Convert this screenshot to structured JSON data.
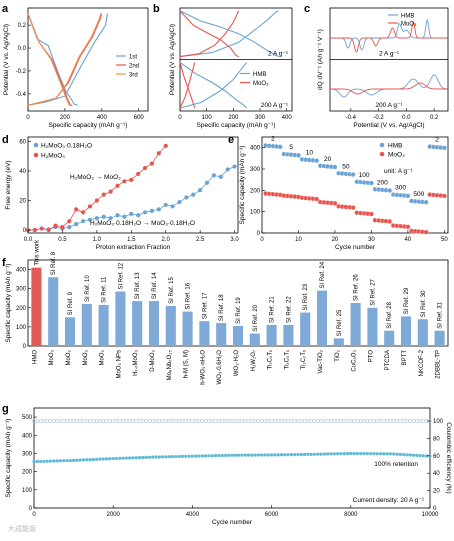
{
  "colors": {
    "blue": "#6aa3d6",
    "red": "#e8554e",
    "orange": "#f0904a",
    "cyan": "#5fb8d4",
    "gray": "#888888",
    "bar": "#7fa9d6",
    "barRed": "#e25a55",
    "green": "#8fb0d0"
  },
  "watermark": "大成能源",
  "chart_data": [
    {
      "id": "a",
      "type": "line",
      "panel_label": "a",
      "xlabel": "Specific capacity (mAh g⁻¹)",
      "ylabel": "Potential (V vs. Ag/AgCl)",
      "xlim": [
        0,
        650
      ],
      "ylim": [
        -0.55,
        0.35
      ],
      "xticks": [
        0,
        200,
        400,
        600
      ],
      "yticks": [
        -0.4,
        -0.2,
        0.0,
        0.2
      ],
      "series": [
        {
          "name": "1st",
          "color": "#6aa3d6",
          "x": [
            0,
            50,
            110,
            160,
            205,
            240,
            250,
            270
          ],
          "y": [
            0.3,
            0.08,
            0.02,
            -0.2,
            -0.38,
            -0.46,
            -0.49,
            -0.5
          ]
        },
        {
          "name": "1st-charge",
          "color": "#6aa3d6",
          "x": [
            0,
            100,
            200,
            300,
            360,
            420,
            430
          ],
          "y": [
            -0.5,
            -0.47,
            -0.42,
            -0.12,
            0.05,
            0.2,
            0.3
          ]
        },
        {
          "name": "2nd",
          "color": "#e8554e",
          "x": [
            0,
            60,
            130,
            180,
            215,
            230,
            240
          ],
          "y": [
            0.3,
            0.05,
            -0.1,
            -0.3,
            -0.45,
            -0.5,
            -0.5
          ]
        },
        {
          "name": "2nd-charge",
          "color": "#e8554e",
          "x": [
            0,
            150,
            220,
            280,
            350,
            390,
            400
          ],
          "y": [
            -0.5,
            -0.44,
            -0.3,
            -0.08,
            0.1,
            0.25,
            0.3
          ]
        },
        {
          "name": "3rd",
          "color": "#f0904a",
          "x": [
            0,
            60,
            125,
            175,
            210,
            225,
            235
          ],
          "y": [
            0.3,
            0.05,
            -0.1,
            -0.3,
            -0.45,
            -0.5,
            -0.5
          ]
        },
        {
          "name": "3rd-charge",
          "color": "#f0904a",
          "x": [
            0,
            150,
            215,
            275,
            345,
            385,
            395
          ],
          "y": [
            -0.5,
            -0.44,
            -0.3,
            -0.08,
            0.1,
            0.25,
            0.3
          ]
        }
      ],
      "legend": [
        "1st",
        "2nd",
        "3rd"
      ]
    },
    {
      "id": "b",
      "type": "line",
      "panel_label": "b",
      "xlabel": "Specific capacity (mAh g⁻¹)",
      "ylabel": "Potential (V vs. Ag/AgCl)",
      "xlim": [
        0,
        420
      ],
      "xticks": [
        0,
        100,
        200,
        300,
        400
      ],
      "annotations": [
        "2 A g⁻¹",
        "200 A g⁻¹"
      ],
      "legend": [
        "HMB",
        "MoO₃"
      ]
    },
    {
      "id": "c",
      "type": "line",
      "panel_label": "c",
      "xlabel": "Potential (V vs. Ag/AgCl)",
      "ylabel": "dQ dV⁻¹ (Ah g⁻¹ V⁻¹)",
      "xlim": [
        -0.55,
        0.3
      ],
      "xticks": [
        -0.4,
        -0.2,
        0.0,
        0.2
      ],
      "annotations": [
        "2 A g⁻¹",
        "200 A g⁻¹"
      ],
      "legend": [
        "HMB",
        "MoO₃"
      ]
    },
    {
      "id": "d",
      "type": "scatter",
      "panel_label": "d",
      "xlabel": "Proton extraction Fraction",
      "ylabel": "Free energy (eV)",
      "xlim": [
        0,
        3.05
      ],
      "ylim": [
        -2,
        63
      ],
      "xticks": [
        0.0,
        0.5,
        1.0,
        1.5,
        2.0,
        2.5,
        3.0
      ],
      "yticks": [
        0,
        20,
        40,
        60
      ],
      "series": [
        {
          "name": "H₂MoO₃·0.18H₂O",
          "color": "#6aa3d6",
          "x": [
            0.0,
            0.1,
            0.2,
            0.3,
            0.4,
            0.5,
            0.6,
            0.7,
            0.8,
            0.9,
            1.0,
            1.1,
            1.2,
            1.3,
            1.4,
            1.5,
            1.6,
            1.7,
            1.8,
            1.9,
            2.0,
            2.1,
            2.2,
            2.3,
            2.4,
            2.5,
            2.6,
            2.7,
            2.8,
            2.9,
            3.0
          ],
          "y": [
            0,
            0,
            1,
            0.5,
            2,
            1,
            2,
            4,
            6,
            7,
            8,
            9,
            8,
            10,
            9,
            11,
            10,
            12,
            13,
            14,
            17,
            16,
            19,
            22,
            24,
            27,
            32,
            37,
            36,
            41,
            43
          ]
        },
        {
          "name": "H₂MoO₃",
          "color": "#e8554e",
          "x": [
            0.0,
            0.1,
            0.2,
            0.3,
            0.4,
            0.5,
            0.6,
            0.7,
            0.8,
            0.9,
            1.0,
            1.1,
            1.2,
            1.3,
            1.4,
            1.5,
            1.6,
            1.7,
            1.8,
            1.9,
            2.0
          ],
          "y": [
            0,
            0,
            1,
            0,
            3,
            2,
            6,
            14,
            12,
            16,
            20,
            24,
            26,
            30,
            33,
            34,
            38,
            42,
            45,
            52,
            57
          ]
        }
      ],
      "annotations": [
        "H₂MoO₃ → MoO₃",
        "H₂MoO₃·0.18H₂O → MoO₃·0.18H₂O"
      ]
    },
    {
      "id": "e",
      "type": "scatter",
      "panel_label": "e",
      "xlabel": "Cycle number",
      "ylabel": "Specific capacity (mAh g⁻¹)",
      "xlim": [
        0,
        51
      ],
      "ylim": [
        0,
        450
      ],
      "xticks": [
        0,
        10,
        20,
        30,
        40,
        50
      ],
      "yticks": [
        0,
        100,
        200,
        300,
        400
      ],
      "unit_note": "unit: A g⁻¹",
      "rate_labels": [
        "2",
        "5",
        "10",
        "20",
        "50",
        "100",
        "200",
        "300",
        "500",
        "2"
      ],
      "series": [
        {
          "name": "HMB",
          "color": "#6aa3d6",
          "blocks": [
            [
              1,
              5,
              410
            ],
            [
              6,
              10,
              370
            ],
            [
              11,
              15,
              345
            ],
            [
              16,
              20,
              315
            ],
            [
              21,
              25,
              280
            ],
            [
              26,
              30,
              240
            ],
            [
              31,
              35,
              205
            ],
            [
              36,
              40,
              180
            ],
            [
              41,
              45,
              150
            ],
            [
              46,
              50,
              405
            ]
          ]
        },
        {
          "name": "MoO₃",
          "color": "#e8554e",
          "blocks": [
            [
              1,
              5,
              185
            ],
            [
              6,
              10,
              175
            ],
            [
              11,
              15,
              165
            ],
            [
              16,
              20,
              145
            ],
            [
              21,
              25,
              125
            ],
            [
              26,
              30,
              95
            ],
            [
              31,
              35,
              60
            ],
            [
              36,
              40,
              35
            ],
            [
              41,
              45,
              10
            ],
            [
              46,
              50,
              180
            ]
          ]
        }
      ]
    },
    {
      "id": "f",
      "type": "bar",
      "panel_label": "f",
      "ylabel": "Specific capacity (mAh g⁻¹)",
      "ylim": [
        0,
        450
      ],
      "yticks": [
        0,
        100,
        200,
        300,
        400
      ],
      "categories": [
        "HMO",
        "MoO₃",
        "MoO₃",
        "MoO₃",
        "MoO₃",
        "MoO₃ NPs",
        "H₁.₆MoO₃",
        "D-MoO₃",
        "Mo₈Nb₆O₂₅",
        "h-M (S, M)",
        "h-WO₃·nH₂O",
        "WO₃·0.6H₂O",
        "WO₃·H₂O",
        "H₂W₂O₇",
        "Ti₃C₂Tₓ",
        "Ti₃C₂Tₓ",
        "Ti₃C₂Tₓ",
        "Vac-TiO₂",
        "TiO₂",
        "CuC₃O₃",
        "PTO",
        "PTCDA",
        "BPTT",
        "NKCOF-2",
        "2DBBL-TP"
      ],
      "values": [
        410,
        360,
        150,
        220,
        215,
        285,
        235,
        235,
        210,
        180,
        130,
        120,
        105,
        65,
        110,
        110,
        175,
        290,
        40,
        225,
        200,
        80,
        155,
        140,
        80
      ],
      "tags": [
        "This work",
        "SI Ref. 8",
        "SI Ref. 9",
        "SI Ref. 10",
        "SI Ref. 11",
        "SI Ref. 12",
        "SI Ref. 13",
        "SI Ref. 14",
        "SI Ref. 15",
        "SI Ref. 16",
        "SI Ref. 17",
        "SI Ref. 18",
        "SI Ref. 19",
        "SI Ref. 20",
        "SI Ref. 21",
        "SI Ref. 22",
        "SI Ref. 23",
        "SI Ref. 24",
        "SI Ref. 25",
        "SI Ref. 26",
        "SI Ref. 27",
        "SI Ref. 28",
        "SI Ref. 29",
        "SI Ref. 30",
        "SI Ref. 31"
      ]
    },
    {
      "id": "g",
      "type": "scatter",
      "panel_label": "g",
      "xlabel": "Cycle number",
      "ylabel": "Specific capacity (mAh g⁻¹)",
      "y2label": "Coulombic efficiency (%)",
      "xlim": [
        0,
        10000
      ],
      "ylim": [
        0,
        550
      ],
      "y2lim": [
        0,
        115
      ],
      "xticks": [
        0,
        2000,
        4000,
        6000,
        8000,
        10000
      ],
      "yticks": [
        0,
        100,
        200,
        300,
        400,
        500
      ],
      "y2ticks": [
        0,
        20,
        40,
        60,
        80,
        100
      ],
      "capacity": {
        "x": [
          0,
          1000,
          2000,
          3000,
          4000,
          5000,
          6000,
          7000,
          8000,
          9000,
          10000
        ],
        "y": [
          255,
          262,
          272,
          280,
          285,
          290,
          292,
          295,
          300,
          298,
          285
        ]
      },
      "efficiency_percent": 100,
      "annotations": [
        "100% retention",
        "Current density: 20 A g⁻¹"
      ]
    }
  ],
  "panel_b_series": {
    "top": [
      {
        "name": "HMB",
        "color": "#6aa3d6",
        "x": [
          0,
          80,
          150,
          220,
          280,
          330,
          360,
          370
        ],
        "y": [
          0.3,
          0.12,
          0.02,
          -0.1,
          -0.25,
          -0.4,
          -0.48,
          -0.5
        ]
      },
      {
        "name": "HMB-ch",
        "color": "#6aa3d6",
        "x": [
          0,
          120,
          220,
          290,
          330,
          360,
          370
        ],
        "y": [
          -0.5,
          -0.43,
          -0.25,
          0.0,
          0.15,
          0.28,
          0.3
        ]
      },
      {
        "name": "MoO₃",
        "color": "#e8554e",
        "x": [
          0,
          50,
          100,
          150,
          190,
          210,
          220
        ],
        "y": [
          0.3,
          0.05,
          -0.08,
          -0.2,
          -0.35,
          -0.48,
          -0.5
        ]
      },
      {
        "name": "MoO₃-ch",
        "color": "#e8554e",
        "x": [
          0,
          70,
          130,
          170,
          200,
          215,
          220
        ],
        "y": [
          -0.5,
          -0.45,
          -0.3,
          -0.1,
          0.1,
          0.25,
          0.3
        ]
      }
    ],
    "bottom": [
      {
        "name": "HMB",
        "color": "#6aa3d6",
        "x": [
          0,
          60,
          120,
          170,
          210,
          240,
          250
        ],
        "y": [
          0.3,
          0.1,
          -0.05,
          -0.2,
          -0.35,
          -0.45,
          -0.5
        ]
      },
      {
        "name": "HMB-ch",
        "color": "#6aa3d6",
        "x": [
          0,
          80,
          150,
          200,
          230,
          250
        ],
        "y": [
          -0.5,
          -0.4,
          -0.2,
          0.0,
          0.18,
          0.3
        ]
      },
      {
        "name": "MoO₃",
        "color": "#e8554e",
        "x": [
          0,
          15,
          30,
          45,
          55
        ],
        "y": [
          0.3,
          0.05,
          -0.15,
          -0.35,
          -0.5
        ]
      },
      {
        "name": "MoO₃-ch",
        "color": "#e8554e",
        "x": [
          0,
          20,
          35,
          50,
          55
        ],
        "y": [
          -0.5,
          -0.3,
          -0.05,
          0.2,
          0.3
        ]
      }
    ]
  }
}
